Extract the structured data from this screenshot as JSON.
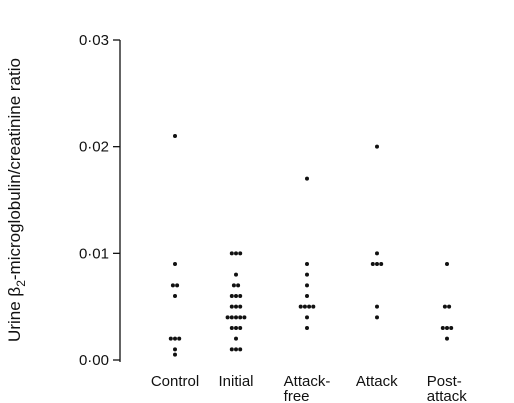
{
  "chart_data": {
    "type": "scatter",
    "ylabel_parts": {
      "pre": "Urine β",
      "sub": "2",
      "post": "-microglobulin/creatinine ratio"
    },
    "y_ticks": [
      {
        "value": 0.0,
        "label": "0·00"
      },
      {
        "value": 0.01,
        "label": "0·01"
      },
      {
        "value": 0.02,
        "label": "0·02"
      },
      {
        "value": 0.03,
        "label": "0·03"
      }
    ],
    "ylim": [
      0,
      0.03
    ],
    "grid": false,
    "categories": [
      {
        "lines": [
          "Control"
        ]
      },
      {
        "lines": [
          "Initial"
        ]
      },
      {
        "lines": [
          "Attack-",
          "free"
        ]
      },
      {
        "lines": [
          "Attack"
        ]
      },
      {
        "lines": [
          "Post-",
          "attack"
        ]
      }
    ],
    "points": [
      [
        0.021,
        0.009,
        0.007,
        0.007,
        0.006,
        0.002,
        0.002,
        0.002,
        0.001,
        0.0005
      ],
      [
        0.01,
        0.01,
        0.01,
        0.008,
        0.007,
        0.007,
        0.006,
        0.006,
        0.006,
        0.005,
        0.005,
        0.005,
        0.004,
        0.004,
        0.004,
        0.004,
        0.004,
        0.003,
        0.003,
        0.003,
        0.002,
        0.001,
        0.001,
        0.001
      ],
      [
        0.017,
        0.009,
        0.008,
        0.007,
        0.006,
        0.005,
        0.005,
        0.005,
        0.005,
        0.004,
        0.003
      ],
      [
        0.02,
        0.01,
        0.009,
        0.009,
        0.009,
        0.005,
        0.004
      ],
      [
        0.009,
        0.005,
        0.005,
        0.003,
        0.003,
        0.003,
        0.002
      ]
    ]
  }
}
